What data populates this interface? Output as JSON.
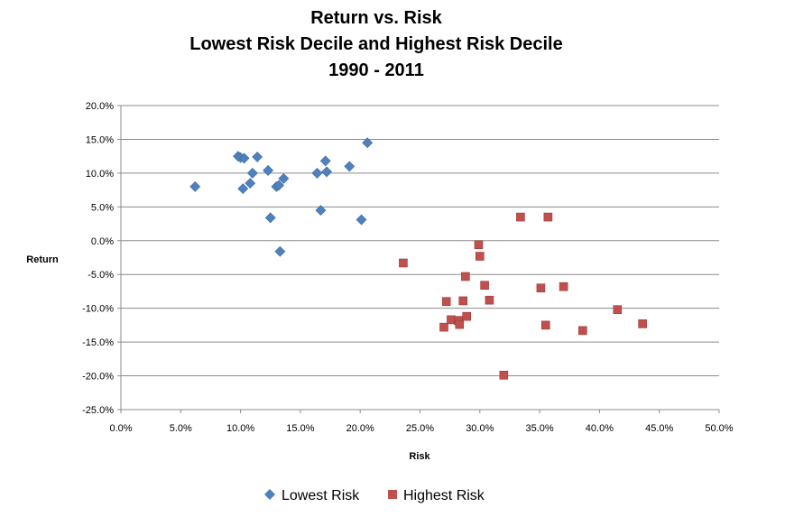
{
  "chart_data": {
    "type": "scatter",
    "title": [
      "Return vs. Risk",
      "Lowest Risk Decile and Highest Risk Decile",
      "1990 - 2011"
    ],
    "xlabel": "Risk",
    "ylabel": "Return",
    "xlim": [
      0,
      0.5
    ],
    "ylim": [
      -0.25,
      0.2
    ],
    "x_ticks": [
      0.0,
      0.05,
      0.1,
      0.15,
      0.2,
      0.25,
      0.3,
      0.35,
      0.4,
      0.45,
      0.5
    ],
    "x_tick_labels": [
      "0.0%",
      "5.0%",
      "10.0%",
      "15.0%",
      "20.0%",
      "25.0%",
      "30.0%",
      "35.0%",
      "40.0%",
      "45.0%",
      "50.0%"
    ],
    "y_ticks": [
      0.2,
      0.15,
      0.1,
      0.05,
      0.0,
      -0.05,
      -0.1,
      -0.15,
      -0.2,
      -0.25
    ],
    "y_tick_labels": [
      "20.0%",
      "15.0%",
      "10.0%",
      "5.0%",
      "0.0%",
      "-5.0%",
      "-10.0%",
      "-15.0%",
      "-20.0%",
      "-25.0%"
    ],
    "grid": "horizontal",
    "legend": "bottom",
    "series": [
      {
        "name": "Lowest Risk",
        "marker": "diamond",
        "color": "#4F81BD",
        "points": [
          [
            0.062,
            0.08
          ],
          [
            0.098,
            0.125
          ],
          [
            0.1,
            0.123
          ],
          [
            0.103,
            0.122
          ],
          [
            0.102,
            0.077
          ],
          [
            0.108,
            0.085
          ],
          [
            0.11,
            0.1
          ],
          [
            0.114,
            0.124
          ],
          [
            0.123,
            0.104
          ],
          [
            0.125,
            0.034
          ],
          [
            0.13,
            0.08
          ],
          [
            0.132,
            0.082
          ],
          [
            0.133,
            -0.016
          ],
          [
            0.136,
            0.092
          ],
          [
            0.164,
            0.1
          ],
          [
            0.167,
            0.045
          ],
          [
            0.171,
            0.118
          ],
          [
            0.172,
            0.102
          ],
          [
            0.191,
            0.11
          ],
          [
            0.201,
            0.031
          ],
          [
            0.206,
            0.145
          ]
        ]
      },
      {
        "name": "Highest Risk",
        "marker": "square",
        "color": "#C0504D",
        "points": [
          [
            0.236,
            -0.033
          ],
          [
            0.27,
            -0.128
          ],
          [
            0.272,
            -0.09
          ],
          [
            0.276,
            -0.117
          ],
          [
            0.282,
            -0.118
          ],
          [
            0.283,
            -0.124
          ],
          [
            0.286,
            -0.089
          ],
          [
            0.288,
            -0.053
          ],
          [
            0.289,
            -0.112
          ],
          [
            0.299,
            -0.006
          ],
          [
            0.3,
            -0.023
          ],
          [
            0.304,
            -0.066
          ],
          [
            0.308,
            -0.088
          ],
          [
            0.32,
            -0.199
          ],
          [
            0.334,
            0.035
          ],
          [
            0.351,
            -0.07
          ],
          [
            0.355,
            -0.125
          ],
          [
            0.357,
            0.035
          ],
          [
            0.37,
            -0.068
          ],
          [
            0.386,
            -0.133
          ],
          [
            0.415,
            -0.102
          ],
          [
            0.436,
            -0.123
          ]
        ]
      }
    ]
  }
}
